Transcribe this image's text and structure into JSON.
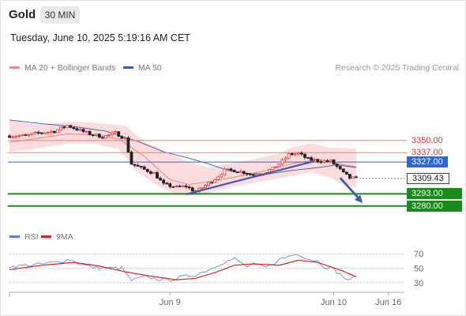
{
  "header": {
    "title": "Gold",
    "timeframe": "30 MIN",
    "datetime": "Tuesday, June 10, 2025 5:19:16 AM CET",
    "research": "Research © 2025 Trading Central"
  },
  "legend": {
    "ma20": "MA 20 + Bollinger Bands",
    "ma50": "MA 50",
    "rsi": "RSI",
    "ma9": "9MA"
  },
  "colors": {
    "bull": "#ee3333",
    "bear": "#222222",
    "ma20": "#f08a8a",
    "ma50": "#3a5ba8",
    "band": "#fbd0d0",
    "resistance": "#f07a7a",
    "pivot": "#3366cc",
    "support": "#1a8a1a",
    "trend": "#3a5ba8",
    "arrow": "#3a5fa8",
    "rsi": "#5b7fd8",
    "rsi_ma": "#dd2222",
    "price_tag": "#222222"
  },
  "chart_data": [
    {
      "type": "candlestick",
      "instrument": "Gold",
      "timeframe": "30 MIN",
      "y_range": [
        3262,
        3382
      ],
      "x_labels": [
        {
          "label": "Jun 9",
          "index": 50
        },
        {
          "label": "Jun 10",
          "index": 101
        },
        {
          "label": "Jun 16",
          "index": 118
        }
      ],
      "x_count": 124,
      "last_price": 3309.43,
      "levels": [
        {
          "label": "3350.00",
          "value": 3350.0,
          "kind": "resistance"
        },
        {
          "label": "3337.00",
          "value": 3337.0,
          "kind": "resistance"
        },
        {
          "label": "3327.00",
          "value": 3327.0,
          "kind": "pivot"
        },
        {
          "label": "3309.43",
          "value": 3309.43,
          "kind": "price"
        },
        {
          "label": "3293.00",
          "value": 3293.0,
          "kind": "support"
        },
        {
          "label": "3280.00",
          "value": 3280.0,
          "kind": "support"
        }
      ],
      "anchors": {
        "price": [
          [
            0,
            3355
          ],
          [
            5,
            3355
          ],
          [
            9,
            3358
          ],
          [
            14,
            3360
          ],
          [
            18,
            3366
          ],
          [
            21,
            3362
          ],
          [
            25,
            3357
          ],
          [
            29,
            3354
          ],
          [
            33,
            3358
          ],
          [
            36,
            3352
          ],
          [
            38,
            3325
          ],
          [
            42,
            3319
          ],
          [
            45,
            3315
          ],
          [
            48,
            3303
          ],
          [
            52,
            3300
          ],
          [
            55,
            3301
          ],
          [
            58,
            3295
          ],
          [
            61,
            3302
          ],
          [
            64,
            3309
          ],
          [
            67,
            3318
          ],
          [
            70,
            3318
          ],
          [
            73,
            3316
          ],
          [
            76,
            3313
          ],
          [
            79,
            3315
          ],
          [
            82,
            3320
          ],
          [
            85,
            3328
          ],
          [
            87,
            3335
          ],
          [
            90,
            3336
          ],
          [
            93,
            3330
          ],
          [
            97,
            3328
          ],
          [
            100,
            3328
          ],
          [
            102,
            3322
          ],
          [
            104,
            3315
          ],
          [
            106,
            3310
          ],
          [
            108,
            3309.43
          ]
        ],
        "ma20": [
          [
            0,
            3348
          ],
          [
            10,
            3353
          ],
          [
            18,
            3357
          ],
          [
            26,
            3356
          ],
          [
            34,
            3352
          ],
          [
            42,
            3333
          ],
          [
            50,
            3308
          ],
          [
            56,
            3303
          ],
          [
            64,
            3307
          ],
          [
            72,
            3312
          ],
          [
            80,
            3318
          ],
          [
            88,
            3325
          ],
          [
            96,
            3330
          ],
          [
            104,
            3324
          ],
          [
            108,
            3322
          ]
        ],
        "band_upper": [
          [
            0,
            3372
          ],
          [
            8,
            3367
          ],
          [
            16,
            3369
          ],
          [
            22,
            3370
          ],
          [
            30,
            3368
          ],
          [
            36,
            3366
          ],
          [
            42,
            3349
          ],
          [
            50,
            3336
          ],
          [
            56,
            3327
          ],
          [
            62,
            3321
          ],
          [
            68,
            3325
          ],
          [
            76,
            3330
          ],
          [
            84,
            3336
          ],
          [
            88,
            3343
          ],
          [
            94,
            3347
          ],
          [
            100,
            3342
          ],
          [
            104,
            3342
          ],
          [
            108,
            3341
          ]
        ],
        "band_lower": [
          [
            0,
            3338
          ],
          [
            10,
            3342
          ],
          [
            18,
            3347
          ],
          [
            26,
            3347
          ],
          [
            34,
            3341
          ],
          [
            40,
            3316
          ],
          [
            46,
            3302
          ],
          [
            52,
            3292
          ],
          [
            56,
            3291
          ],
          [
            62,
            3294
          ],
          [
            70,
            3301
          ],
          [
            78,
            3306
          ],
          [
            86,
            3311
          ],
          [
            94,
            3316
          ],
          [
            100,
            3310
          ],
          [
            104,
            3303
          ],
          [
            108,
            3300
          ]
        ],
        "ma50": [
          [
            0,
            3372
          ],
          [
            10,
            3368
          ],
          [
            20,
            3365
          ],
          [
            30,
            3360
          ],
          [
            40,
            3349
          ],
          [
            48,
            3338
          ],
          [
            56,
            3331
          ],
          [
            62,
            3325
          ],
          [
            68,
            3318
          ],
          [
            74,
            3315
          ],
          [
            80,
            3314
          ],
          [
            88,
            3318
          ],
          [
            96,
            3321
          ],
          [
            102,
            3324
          ],
          [
            108,
            3321
          ]
        ]
      },
      "trendline": [
        [
          55,
          3292.5
        ],
        [
          95,
          3328
        ]
      ],
      "forecast_arrow": [
        [
          103,
          3310
        ],
        [
          110,
          3283
        ]
      ]
    },
    {
      "type": "line",
      "name": "RSI",
      "y_range": [
        20,
        80
      ],
      "y_ticks": [
        70,
        50,
        30
      ],
      "rsi_anchors": [
        [
          0,
          52
        ],
        [
          5,
          54
        ],
        [
          9,
          55
        ],
        [
          14,
          58
        ],
        [
          19,
          62
        ],
        [
          22,
          56
        ],
        [
          26,
          51
        ],
        [
          30,
          50
        ],
        [
          35,
          50
        ],
        [
          38,
          33
        ],
        [
          42,
          38
        ],
        [
          46,
          35
        ],
        [
          50,
          34
        ],
        [
          54,
          38
        ],
        [
          58,
          41
        ],
        [
          62,
          48
        ],
        [
          66,
          57
        ],
        [
          70,
          63
        ],
        [
          74,
          52
        ],
        [
          76,
          55
        ],
        [
          80,
          51
        ],
        [
          84,
          62
        ],
        [
          88,
          68
        ],
        [
          90,
          70
        ],
        [
          93,
          63
        ],
        [
          96,
          60
        ],
        [
          98,
          52
        ],
        [
          100,
          51
        ],
        [
          102,
          45
        ],
        [
          104,
          38
        ],
        [
          106,
          32
        ],
        [
          108,
          42
        ]
      ],
      "ma_anchors": [
        [
          0,
          48
        ],
        [
          10,
          54
        ],
        [
          20,
          58
        ],
        [
          28,
          53
        ],
        [
          36,
          45
        ],
        [
          44,
          39
        ],
        [
          52,
          34
        ],
        [
          58,
          36
        ],
        [
          64,
          44
        ],
        [
          70,
          54
        ],
        [
          76,
          56
        ],
        [
          84,
          54
        ],
        [
          90,
          61
        ],
        [
          96,
          58
        ],
        [
          104,
          46
        ],
        [
          108,
          38
        ]
      ]
    }
  ]
}
